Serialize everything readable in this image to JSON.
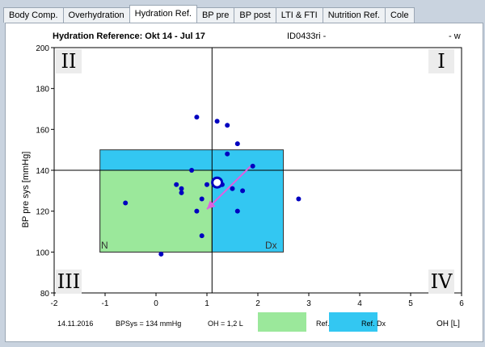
{
  "tabs": [
    {
      "label": "Body Comp.",
      "active": false
    },
    {
      "label": "Overhydration",
      "active": false
    },
    {
      "label": "Hydration Ref.",
      "active": true
    },
    {
      "label": "BP pre",
      "active": false
    },
    {
      "label": "BP post",
      "active": false
    },
    {
      "label": "LTI & FTI",
      "active": false
    },
    {
      "label": "Nutrition Ref.",
      "active": false
    },
    {
      "label": "Cole",
      "active": false
    }
  ],
  "header": {
    "title": "Hydration Reference: Okt 14 - Jul 17",
    "patient_id": "ID0433ri -",
    "gender": "- w"
  },
  "quadrants": {
    "q1": "I",
    "q2": "II",
    "q3": "III",
    "q4": "IV"
  },
  "footer": {
    "date": "14.11.2016",
    "bp": "BPSys = 134 mmHg",
    "oh": "OH = 1,2 L",
    "legend_n": "Ref. N",
    "legend_dx": "Ref. Dx",
    "x_unit": "OH [L]"
  },
  "colors": {
    "ref_n": "#9be89b",
    "ref_dx": "#33c7f2",
    "points": "#0000c0",
    "trend": "#e060e0"
  },
  "chart_data": {
    "type": "scatter",
    "title": "Hydration Reference: Okt 14 - Jul 17",
    "xlabel": "OH [L]",
    "ylabel": "BP pre sys [mmHg]",
    "xlim": [
      -2,
      6
    ],
    "ylim": [
      80,
      200
    ],
    "x_ticks": [
      -2,
      -1,
      0,
      1,
      2,
      3,
      4,
      5,
      6
    ],
    "y_ticks": [
      80,
      100,
      120,
      140,
      160,
      180,
      200
    ],
    "reference_lines": {
      "x": 1.1,
      "y": 140
    },
    "regions": [
      {
        "name": "N",
        "x": [
          -1.1,
          1.1
        ],
        "y": [
          100,
          140
        ]
      },
      {
        "name": "Dx",
        "x": [
          -1.1,
          2.5
        ],
        "y": [
          100,
          150
        ]
      }
    ],
    "points": [
      {
        "x": -0.6,
        "y": 124
      },
      {
        "x": 0.1,
        "y": 99
      },
      {
        "x": 0.4,
        "y": 133
      },
      {
        "x": 0.5,
        "y": 131
      },
      {
        "x": 0.5,
        "y": 129
      },
      {
        "x": 0.7,
        "y": 140
      },
      {
        "x": 0.8,
        "y": 166
      },
      {
        "x": 0.8,
        "y": 120
      },
      {
        "x": 0.9,
        "y": 126
      },
      {
        "x": 0.9,
        "y": 108
      },
      {
        "x": 1.0,
        "y": 133
      },
      {
        "x": 1.2,
        "y": 164
      },
      {
        "x": 1.3,
        "y": 133
      },
      {
        "x": 1.4,
        "y": 162
      },
      {
        "x": 1.4,
        "y": 148
      },
      {
        "x": 1.5,
        "y": 131
      },
      {
        "x": 1.6,
        "y": 153
      },
      {
        "x": 1.6,
        "y": 120
      },
      {
        "x": 1.7,
        "y": 130
      },
      {
        "x": 1.9,
        "y": 142
      },
      {
        "x": 2.8,
        "y": 126
      }
    ],
    "current_point": {
      "x": 1.2,
      "y": 134
    },
    "trend": {
      "from": {
        "x": 1.9,
        "y": 143
      },
      "to": {
        "x": 1.0,
        "y": 121
      }
    }
  }
}
